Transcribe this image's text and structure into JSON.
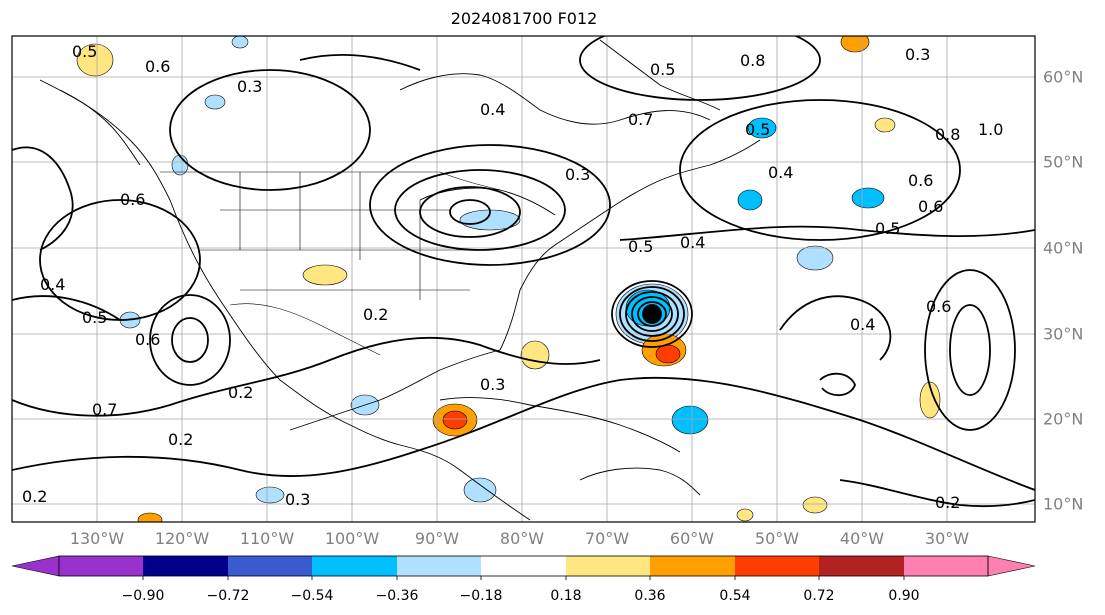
{
  "title": "2024081700 F012",
  "lon_labels": [
    "130°W",
    "120°W",
    "110°W",
    "100°W",
    "90°W",
    "80°W",
    "70°W",
    "60°W",
    "50°W",
    "40°W",
    "30°W"
  ],
  "lat_labels": [
    "60°N",
    "50°N",
    "40°N",
    "30°N",
    "20°N",
    "10°N"
  ],
  "colorbar": {
    "ticks": [
      "−0.90",
      "−0.72",
      "−0.54",
      "−0.36",
      "−0.18",
      "0.18",
      "0.36",
      "0.54",
      "0.72",
      "0.90"
    ],
    "colors": [
      "#9932cc",
      "#00008b",
      "#3a5bd0",
      "#00bfff",
      "#b0e0ff",
      "#ffffff",
      "#ffe680",
      "#ff9f00",
      "#ff3d00",
      "#b22222",
      "#ff80b0"
    ]
  },
  "contour_labels": [
    {
      "text": "0.5"
    },
    {
      "text": "0.6"
    },
    {
      "text": "0.3"
    },
    {
      "text": "0.4"
    },
    {
      "text": "0.6"
    },
    {
      "text": "0.5"
    },
    {
      "text": "0.6"
    },
    {
      "text": "0.4"
    },
    {
      "text": "0.5"
    },
    {
      "text": "0.7"
    },
    {
      "text": "0.2"
    },
    {
      "text": "0.2"
    },
    {
      "text": "0.3"
    },
    {
      "text": "0.7"
    },
    {
      "text": "0.2"
    },
    {
      "text": "0.3"
    },
    {
      "text": "0.2"
    },
    {
      "text": "0.5"
    },
    {
      "text": "0.4"
    },
    {
      "text": "0.5"
    },
    {
      "text": "0.8"
    },
    {
      "text": "1.0"
    },
    {
      "text": "0.4"
    },
    {
      "text": "0.6"
    },
    {
      "text": "0.6"
    },
    {
      "text": "0.5"
    },
    {
      "text": "0.4"
    },
    {
      "text": "0.6"
    },
    {
      "text": "0.3"
    },
    {
      "text": "0.2"
    },
    {
      "text": "0.8"
    },
    {
      "text": "0.3"
    }
  ]
}
